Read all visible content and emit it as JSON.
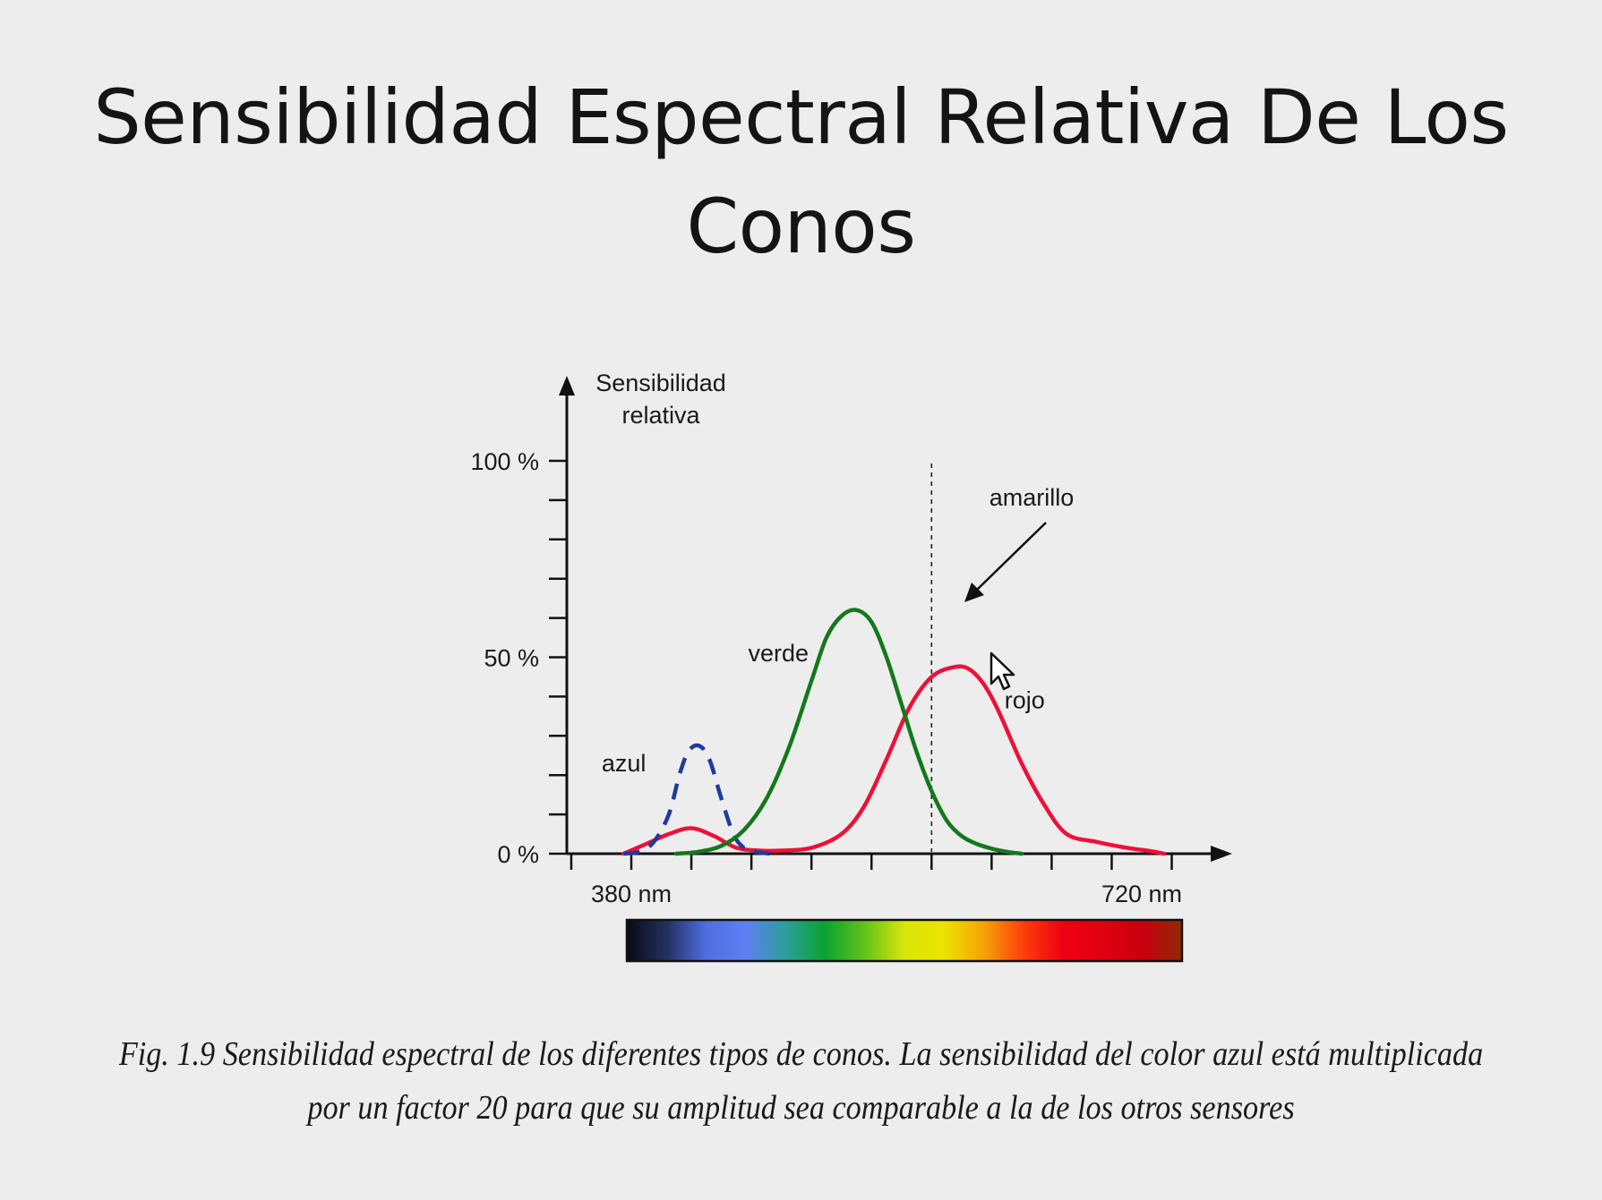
{
  "slide": {
    "title_line1": "Sensibilidad Espectral Relativa De Los",
    "title_line2": "Conos"
  },
  "chart_data": {
    "type": "line",
    "ylabel_line1": "Sensibilidad",
    "ylabel_line2": "relativa",
    "y_ticks": [
      {
        "value": 0,
        "label": "0 %"
      },
      {
        "value": 50,
        "label": "50 %"
      },
      {
        "value": 100,
        "label": "100 %"
      }
    ],
    "x_ticks": [
      {
        "value": 380,
        "label": "380 nm"
      },
      {
        "value": 720,
        "label": "720 nm"
      }
    ],
    "xlim": [
      340,
      770
    ],
    "ylim": [
      0,
      100
    ],
    "series": [
      {
        "name": "azul",
        "color": "#1f3a9e",
        "dashed": true,
        "label_at": [
          375,
          21
        ],
        "x": [
          375,
          385,
          395,
          405,
          412,
          418,
          425,
          432,
          440,
          448,
          455,
          462,
          472
        ],
        "y": [
          0,
          0.5,
          3,
          10,
          20,
          26,
          27.5,
          24,
          14,
          5,
          1.5,
          0.5,
          0
        ]
      },
      {
        "name": "verde",
        "color": "#13791c",
        "dashed": false,
        "label_at": [
          478,
          49
        ],
        "x": [
          410,
          425,
          440,
          455,
          470,
          485,
          500,
          510,
          520,
          530,
          540,
          550,
          560,
          570,
          580,
          590,
          600,
          610,
          620,
          630,
          640
        ],
        "y": [
          0,
          0.5,
          2,
          6,
          14,
          27,
          44,
          55,
          60.5,
          62,
          59,
          50,
          38,
          26,
          16,
          8.5,
          4.5,
          2.5,
          1.3,
          0.5,
          0
        ]
      },
      {
        "name": "rojo",
        "color": "#ee1038",
        "dashed": false,
        "label_at": [
          642,
          37
        ],
        "x": [
          375,
          390,
          405,
          420,
          435,
          450,
          465,
          480,
          500,
          520,
          535,
          550,
          565,
          580,
          595,
          605,
          615,
          625,
          640,
          655,
          670,
          690,
          710,
          725,
          735
        ],
        "y": [
          0,
          2.5,
          5,
          6.5,
          4.5,
          1.5,
          0.8,
          0.8,
          1.5,
          5,
          12,
          24,
          37,
          45,
          47.5,
          47,
          43,
          36,
          23,
          12.5,
          5,
          3,
          1.5,
          0.7,
          0
        ]
      }
    ],
    "yellow_marker": {
      "label": "amarillo",
      "x": 580
    },
    "spectrum_bar": {
      "from": 380,
      "to": 720,
      "colors": [
        "#0a0a14",
        "#23305e",
        "#4f6ee0",
        "#5e80f2",
        "#2a9f9a",
        "#0aa32f",
        "#63c21a",
        "#d9e60a",
        "#ece300",
        "#f6a207",
        "#fb3f0a",
        "#ee0010",
        "#e10010",
        "#c8000e",
        "#8e2a06"
      ]
    }
  },
  "caption": {
    "line1": "Fig. 1.9  Sensibilidad espectral de los diferentes tipos de conos. La sensibilidad del color azul está multiplicada",
    "line2": "por un factor 20 para que su amplitud sea comparable a la de los otros sensores"
  }
}
